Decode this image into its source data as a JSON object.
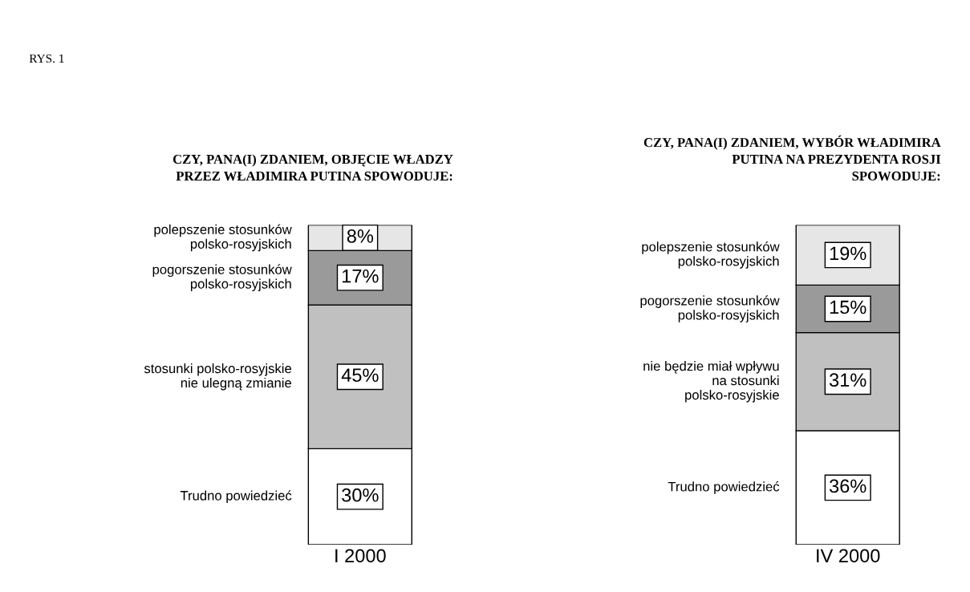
{
  "chart_data": [
    {
      "type": "bar",
      "stacked": true,
      "title": "CZY, PANA(I) ZDANIEM, OBJĘCIE WŁADZY\nPRZEZ WŁADIMIRA PUTINA SPOWODUJE:",
      "annotations": [
        "RYS. 1"
      ],
      "categories": [
        "I 2000"
      ],
      "legend": false,
      "series": [
        {
          "name": "Trudno powiedzieć",
          "color": "#ffffff",
          "values": [
            30
          ],
          "value_labels": [
            "30%"
          ]
        },
        {
          "name": "stosunki polsko-rosyjskie\nnie ulegną zmianie",
          "color": "#c0c0c0",
          "values": [
            45
          ],
          "value_labels": [
            "45%"
          ]
        },
        {
          "name": "pogorszenie stosunków\npolsko-rosyjskich",
          "color": "#9a9a9a",
          "values": [
            17
          ],
          "value_labels": [
            "17%"
          ]
        },
        {
          "name": "polepszenie stosunków\npolsko-rosyjskich",
          "color": "#e6e6e6",
          "values": [
            8
          ],
          "value_labels": [
            "8%"
          ]
        }
      ]
    },
    {
      "type": "bar",
      "stacked": true,
      "title": "CZY, PANA(I) ZDANIEM, WYBÓR WŁADIMIRA\nPUTINA NA PREZYDENTA ROSJI\nSPOWODUJE:",
      "categories": [
        "IV 2000"
      ],
      "legend": false,
      "series": [
        {
          "name": "Trudno powiedzieć",
          "color": "#ffffff",
          "values": [
            36
          ],
          "value_labels": [
            "36%"
          ]
        },
        {
          "name": "nie będzie miał wpływu\nna stosunki\npolsko-rosyjskie",
          "color": "#c0c0c0",
          "values": [
            31
          ],
          "value_labels": [
            "31%"
          ]
        },
        {
          "name": "pogorszenie stosunków\npolsko-rosyjskich",
          "color": "#9a9a9a",
          "values": [
            15
          ],
          "value_labels": [
            "15%"
          ]
        },
        {
          "name": "polepszenie stosunków\npolsko-rosyjskich",
          "color": "#e6e6e6",
          "values": [
            19
          ],
          "value_labels": [
            "19%"
          ]
        }
      ]
    }
  ]
}
